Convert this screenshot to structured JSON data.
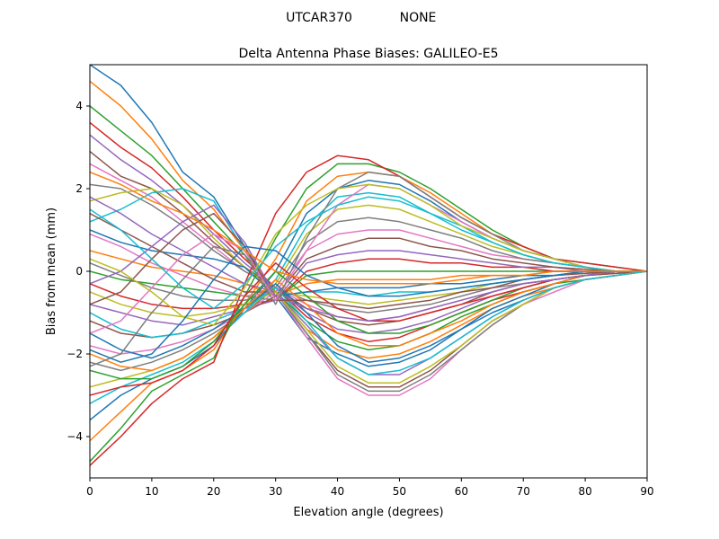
{
  "figure": {
    "suptitle_station": "UTCAR370",
    "suptitle_radome": "NONE"
  },
  "chart_data": {
    "type": "line",
    "title": "Delta Antenna Phase Biases: GALILEO-E5",
    "xlabel": "Elevation angle (degrees)",
    "ylabel": "Bias from mean (mm)",
    "xlim": [
      0,
      90
    ],
    "ylim": [
      -5,
      5
    ],
    "xticks": [
      0,
      10,
      20,
      30,
      40,
      50,
      60,
      70,
      80,
      90
    ],
    "yticks": [
      -4,
      -2,
      0,
      2,
      4
    ],
    "x": [
      0,
      5,
      10,
      15,
      20,
      25,
      30,
      35,
      40,
      45,
      50,
      55,
      60,
      65,
      70,
      75,
      80,
      85,
      90
    ],
    "grid": false,
    "legend": "none",
    "color_cycle": [
      "#1f77b4",
      "#ff7f0e",
      "#2ca02c",
      "#d62728",
      "#9467bd",
      "#8c564b",
      "#e377c2",
      "#7f7f7f",
      "#bcbd22",
      "#17becf"
    ],
    "series": [
      {
        "name": "s1",
        "values": [
          5.0,
          4.5,
          3.6,
          2.4,
          1.8,
          0.6,
          -0.6,
          -1.6,
          -2.0,
          -2.3,
          -2.2,
          -1.9,
          -1.4,
          -1.0,
          -0.7,
          -0.4,
          -0.2,
          -0.1,
          0
        ]
      },
      {
        "name": "s2",
        "values": [
          4.6,
          4.0,
          3.2,
          2.2,
          1.5,
          0.5,
          -0.5,
          -1.4,
          -1.9,
          -2.1,
          -2.0,
          -1.7,
          -1.3,
          -0.9,
          -0.6,
          -0.4,
          -0.2,
          -0.1,
          0
        ]
      },
      {
        "name": "s3",
        "values": [
          4.0,
          3.4,
          2.8,
          2.0,
          1.2,
          0.4,
          -0.5,
          -1.2,
          -1.7,
          -1.9,
          -1.8,
          -1.5,
          -1.1,
          -0.8,
          -0.5,
          -0.3,
          -0.2,
          -0.1,
          0
        ]
      },
      {
        "name": "s4",
        "values": [
          3.6,
          3.0,
          2.5,
          1.8,
          1.0,
          0.3,
          -0.4,
          -1.1,
          -1.5,
          -1.7,
          -1.6,
          -1.3,
          -1.0,
          -0.7,
          -0.5,
          -0.3,
          -0.1,
          -0.05,
          0
        ]
      },
      {
        "name": "s5",
        "values": [
          3.3,
          2.7,
          2.2,
          1.6,
          0.9,
          0.2,
          -0.4,
          -1.0,
          -1.4,
          -1.5,
          -1.4,
          -1.2,
          -0.9,
          -0.6,
          -0.4,
          -0.2,
          -0.1,
          -0.05,
          0
        ]
      },
      {
        "name": "s6",
        "values": [
          2.9,
          2.3,
          2.0,
          1.4,
          0.7,
          0.1,
          -0.4,
          -0.9,
          -1.2,
          -1.3,
          -1.2,
          -1.0,
          -0.8,
          -0.5,
          -0.3,
          -0.2,
          -0.1,
          -0.05,
          0
        ]
      },
      {
        "name": "s7",
        "values": [
          2.6,
          2.2,
          1.8,
          1.2,
          0.6,
          0.0,
          -0.4,
          -0.8,
          -1.1,
          -1.2,
          -1.1,
          -0.9,
          -0.7,
          -0.5,
          -0.3,
          -0.2,
          -0.1,
          0,
          0
        ]
      },
      {
        "name": "s8",
        "values": [
          2.1,
          2.0,
          1.6,
          1.1,
          0.5,
          0.0,
          -0.4,
          -0.7,
          -0.9,
          -1.0,
          -0.9,
          -0.8,
          -0.6,
          -0.4,
          -0.3,
          -0.2,
          -0.1,
          0,
          0
        ]
      },
      {
        "name": "s9",
        "values": [
          1.7,
          1.9,
          2.0,
          1.6,
          0.8,
          0.1,
          -0.5,
          -0.6,
          -0.7,
          -0.8,
          -0.7,
          -0.6,
          -0.5,
          -0.3,
          -0.2,
          -0.1,
          -0.05,
          0,
          0
        ]
      },
      {
        "name": "s10",
        "values": [
          1.2,
          1.5,
          1.9,
          2.0,
          1.7,
          0.5,
          -0.6,
          -0.5,
          -0.5,
          -0.6,
          -0.5,
          -0.5,
          -0.4,
          -0.3,
          -0.2,
          -0.1,
          -0.05,
          0,
          0
        ]
      },
      {
        "name": "s11",
        "values": [
          1.0,
          0.7,
          0.5,
          0.4,
          0.3,
          0.1,
          -0.6,
          -0.5,
          -0.4,
          -0.4,
          -0.4,
          -0.3,
          -0.3,
          -0.2,
          -0.1,
          -0.1,
          0,
          0,
          0
        ]
      },
      {
        "name": "s12",
        "values": [
          0.5,
          0.3,
          0.1,
          0.0,
          -0.1,
          -0.3,
          -0.6,
          -0.3,
          -0.2,
          -0.2,
          -0.2,
          -0.2,
          -0.1,
          -0.1,
          -0.1,
          0,
          0,
          0,
          0
        ]
      },
      {
        "name": "s13",
        "values": [
          0.0,
          -0.2,
          -0.3,
          -0.4,
          -0.5,
          -0.6,
          -0.7,
          -0.1,
          0.0,
          0.0,
          0.0,
          0.0,
          0.0,
          0.0,
          0.0,
          0,
          0,
          0,
          0
        ]
      },
      {
        "name": "s14",
        "values": [
          -0.3,
          -0.6,
          -0.8,
          -0.9,
          -0.9,
          -0.8,
          -0.7,
          0.0,
          0.2,
          0.3,
          0.3,
          0.2,
          0.2,
          0.1,
          0.1,
          0,
          0,
          0,
          0
        ]
      },
      {
        "name": "s15",
        "values": [
          -0.8,
          -1.0,
          -1.2,
          -1.3,
          -1.1,
          -0.9,
          -0.7,
          0.2,
          0.4,
          0.5,
          0.5,
          0.4,
          0.3,
          0.2,
          0.1,
          0.1,
          0,
          0,
          0
        ]
      },
      {
        "name": "s16",
        "values": [
          -1.2,
          -1.5,
          -1.6,
          -1.5,
          -1.3,
          -1.0,
          -0.6,
          0.3,
          0.6,
          0.8,
          0.8,
          0.6,
          0.5,
          0.3,
          0.2,
          0.1,
          0.05,
          0,
          0
        ]
      },
      {
        "name": "s17",
        "values": [
          -1.8,
          -2.0,
          -1.9,
          -1.7,
          -1.4,
          -1.0,
          -0.5,
          0.5,
          0.9,
          1.0,
          1.0,
          0.8,
          0.6,
          0.4,
          0.3,
          0.2,
          0.1,
          0,
          0
        ]
      },
      {
        "name": "s18",
        "values": [
          -2.2,
          -2.4,
          -2.2,
          -1.9,
          -1.5,
          -1.0,
          -0.4,
          0.7,
          1.2,
          1.3,
          1.2,
          1.0,
          0.8,
          0.5,
          0.3,
          0.2,
          0.1,
          0,
          0
        ]
      },
      {
        "name": "s19",
        "values": [
          -2.8,
          -2.6,
          -2.4,
          -2.1,
          -1.6,
          -1.0,
          -0.3,
          0.9,
          1.5,
          1.6,
          1.5,
          1.2,
          0.9,
          0.6,
          0.4,
          0.2,
          0.1,
          0,
          0
        ]
      },
      {
        "name": "s20",
        "values": [
          -3.2,
          -2.8,
          -2.5,
          -2.2,
          -1.7,
          -1.0,
          -0.2,
          1.1,
          1.8,
          1.9,
          1.8,
          1.4,
          1.1,
          0.7,
          0.4,
          0.2,
          0.1,
          0,
          0
        ]
      },
      {
        "name": "s21",
        "values": [
          -3.6,
          -3.0,
          -2.6,
          -2.3,
          -1.8,
          -0.9,
          0.0,
          1.4,
          2.0,
          2.2,
          2.1,
          1.7,
          1.2,
          0.8,
          0.5,
          0.3,
          0.1,
          0,
          0
        ]
      },
      {
        "name": "s22",
        "values": [
          -4.1,
          -3.4,
          -2.7,
          -2.4,
          -1.9,
          -0.8,
          0.3,
          1.7,
          2.3,
          2.4,
          2.3,
          1.9,
          1.4,
          0.9,
          0.6,
          0.3,
          0.1,
          0,
          0
        ]
      },
      {
        "name": "s23",
        "values": [
          -4.6,
          -3.8,
          -2.9,
          -2.5,
          -2.1,
          -0.6,
          0.8,
          2.0,
          2.6,
          2.6,
          2.4,
          2.0,
          1.5,
          1.0,
          0.6,
          0.3,
          0.2,
          0.1,
          0
        ]
      },
      {
        "name": "s24",
        "values": [
          -4.7,
          -4.0,
          -3.2,
          -2.6,
          -2.2,
          -0.3,
          1.4,
          2.4,
          2.8,
          2.7,
          2.3,
          1.8,
          1.3,
          0.9,
          0.6,
          0.3,
          0.2,
          0.1,
          0
        ]
      },
      {
        "name": "s25",
        "values": [
          1.8,
          1.4,
          0.9,
          0.5,
          0.1,
          -0.3,
          -0.5,
          -1.3,
          -2.1,
          -2.5,
          -2.5,
          -2.1,
          -1.6,
          -1.1,
          -0.7,
          -0.4,
          -0.2,
          -0.1,
          0
        ]
      },
      {
        "name": "s26",
        "values": [
          1.4,
          1.0,
          0.6,
          0.2,
          -0.2,
          -0.5,
          -0.5,
          -1.5,
          -2.4,
          -2.8,
          -2.8,
          -2.4,
          -1.8,
          -1.2,
          -0.8,
          -0.4,
          -0.2,
          -0.1,
          0
        ]
      },
      {
        "name": "s27",
        "values": [
          0.9,
          0.6,
          0.2,
          -0.1,
          -0.4,
          -0.6,
          -0.5,
          -1.6,
          -2.6,
          -3.0,
          -3.0,
          -2.6,
          -1.9,
          -1.3,
          -0.8,
          -0.5,
          -0.2,
          -0.1,
          0
        ]
      },
      {
        "name": "s28",
        "values": [
          0.2,
          -0.1,
          -0.4,
          -0.6,
          -0.7,
          -0.7,
          -0.5,
          -1.5,
          -2.5,
          -2.9,
          -2.9,
          -2.5,
          -1.9,
          -1.3,
          -0.8,
          -0.4,
          -0.2,
          -0.1,
          0
        ]
      },
      {
        "name": "s29",
        "values": [
          -0.5,
          -0.8,
          -1.0,
          -1.1,
          -1.0,
          -0.8,
          -0.5,
          -1.4,
          -2.3,
          -2.7,
          -2.7,
          -2.3,
          -1.8,
          -1.2,
          -0.8,
          -0.4,
          -0.2,
          -0.1,
          0
        ]
      },
      {
        "name": "s30",
        "values": [
          -1.0,
          -1.4,
          -1.6,
          -1.5,
          -1.2,
          -0.9,
          -0.4,
          -1.2,
          -2.1,
          -2.5,
          -2.4,
          -2.1,
          -1.6,
          -1.1,
          -0.7,
          -0.4,
          -0.2,
          -0.1,
          0
        ]
      },
      {
        "name": "s31",
        "values": [
          -1.5,
          -1.9,
          -2.1,
          -1.8,
          -1.4,
          -0.9,
          -0.3,
          -1.0,
          -1.8,
          -2.2,
          -2.1,
          -1.8,
          -1.4,
          -0.9,
          -0.6,
          -0.3,
          -0.1,
          0,
          0
        ]
      },
      {
        "name": "s32",
        "values": [
          -2.0,
          -2.3,
          -2.4,
          -2.1,
          -1.6,
          -0.9,
          -0.2,
          -0.8,
          -1.5,
          -1.8,
          -1.8,
          -1.5,
          -1.2,
          -0.8,
          -0.5,
          -0.3,
          -0.1,
          0,
          0
        ]
      },
      {
        "name": "s33",
        "values": [
          -2.4,
          -2.6,
          -2.6,
          -2.3,
          -1.7,
          -0.8,
          0.0,
          -0.6,
          -1.2,
          -1.5,
          -1.5,
          -1.3,
          -1.0,
          -0.7,
          -0.4,
          -0.2,
          -0.1,
          0,
          0
        ]
      },
      {
        "name": "s34",
        "values": [
          -3.0,
          -2.8,
          -2.7,
          -2.4,
          -1.8,
          -0.6,
          0.2,
          -0.4,
          -0.9,
          -1.2,
          -1.2,
          -1.0,
          -0.8,
          -0.6,
          -0.4,
          -0.2,
          -0.1,
          0,
          0
        ]
      },
      {
        "name": "s35",
        "values": [
          -0.3,
          0.0,
          0.6,
          1.2,
          1.6,
          0.7,
          -0.6,
          -0.9,
          -1.1,
          -1.2,
          -1.1,
          -0.9,
          -0.7,
          -0.5,
          -0.3,
          -0.2,
          -0.1,
          0,
          0
        ]
      },
      {
        "name": "s36",
        "values": [
          -0.8,
          -0.5,
          0.3,
          1.0,
          1.4,
          0.6,
          -0.7,
          -0.7,
          -0.8,
          -0.9,
          -0.8,
          -0.7,
          -0.5,
          -0.4,
          -0.2,
          -0.1,
          -0.05,
          0,
          0
        ]
      },
      {
        "name": "s37",
        "values": [
          -1.5,
          -1.2,
          -0.4,
          0.4,
          0.9,
          0.5,
          -0.7,
          0.5,
          1.6,
          2.1,
          2.0,
          1.6,
          1.2,
          0.8,
          0.5,
          0.3,
          0.1,
          0,
          0
        ]
      },
      {
        "name": "s38",
        "values": [
          -2.3,
          -2.0,
          -1.0,
          -0.2,
          0.6,
          0.4,
          -0.8,
          0.8,
          2.0,
          2.4,
          2.3,
          1.8,
          1.3,
          0.9,
          0.5,
          0.3,
          0.1,
          0,
          0
        ]
      },
      {
        "name": "s39",
        "values": [
          0.3,
          0.0,
          -0.5,
          -1.1,
          -1.3,
          -0.4,
          0.9,
          1.6,
          2.0,
          2.1,
          2.0,
          1.6,
          1.1,
          0.8,
          0.5,
          0.3,
          0.1,
          0,
          0
        ]
      },
      {
        "name": "s40",
        "values": [
          1.5,
          1.0,
          0.3,
          -0.4,
          -0.9,
          -0.3,
          0.6,
          1.2,
          1.6,
          1.8,
          1.7,
          1.4,
          1.0,
          0.7,
          0.4,
          0.2,
          0.1,
          0,
          0
        ]
      },
      {
        "name": "s41",
        "values": [
          -1.9,
          -2.2,
          -2.0,
          -1.2,
          -0.2,
          0.6,
          0.5,
          -0.1,
          -0.4,
          -0.6,
          -0.6,
          -0.5,
          -0.4,
          -0.3,
          -0.2,
          -0.1,
          0,
          0,
          0
        ]
      },
      {
        "name": "s42",
        "values": [
          2.4,
          2.1,
          1.7,
          1.4,
          1.0,
          0.5,
          0.0,
          -0.2,
          -0.3,
          -0.3,
          -0.3,
          -0.3,
          -0.2,
          -0.1,
          -0.1,
          0,
          0,
          0,
          0
        ]
      }
    ]
  }
}
